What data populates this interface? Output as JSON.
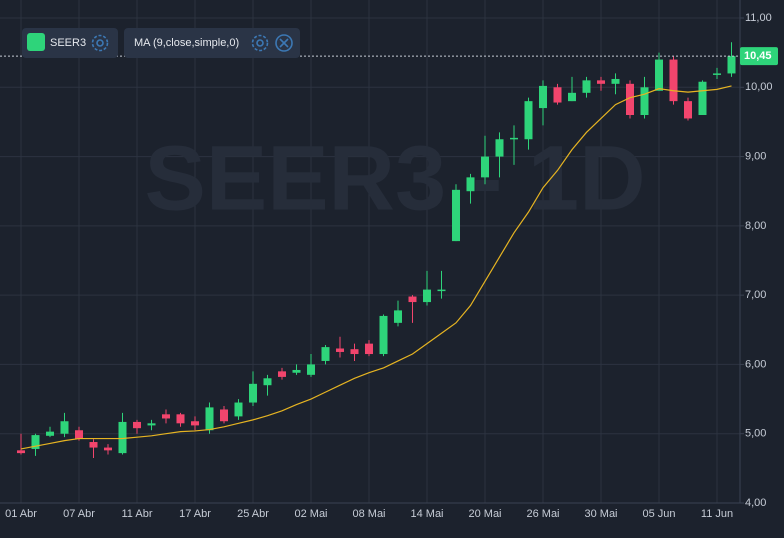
{
  "chart_data": {
    "type": "candlestick",
    "watermark": "SEER3 - 1D",
    "categories": [
      "01 Abr",
      null,
      null,
      null,
      "07 Abr",
      null,
      null,
      null,
      "11 Abr",
      null,
      null,
      null,
      "17 Abr",
      null,
      null,
      null,
      "25 Abr",
      null,
      null,
      null,
      "02 Mai",
      null,
      null,
      null,
      "08 Mai",
      null,
      null,
      null,
      "14 Mai",
      null,
      null,
      null,
      "20 Mai",
      null,
      null,
      null,
      "26 Mai",
      null,
      null,
      null,
      "30 Mai",
      null,
      null,
      null,
      "05 Jun",
      null,
      null,
      null,
      "11 Jun",
      null
    ],
    "series": [
      {
        "name": "SEER3",
        "up_color": "#2ed47a",
        "down_color": "#f2456d",
        "open": [
          4.76,
          4.78,
          4.97,
          5.0,
          5.05,
          4.88,
          4.8,
          4.72,
          5.17,
          5.12,
          5.28,
          5.28,
          5.18,
          5.05,
          5.35,
          5.25,
          5.45,
          5.7,
          5.9,
          5.88,
          5.85,
          6.05,
          6.23,
          6.22,
          6.3,
          6.15,
          6.6,
          6.98,
          6.9,
          7.06,
          7.78,
          8.5,
          8.7,
          9.0,
          9.25,
          9.25,
          9.7,
          10.0,
          9.8,
          9.92,
          10.1,
          10.05,
          10.05,
          9.6,
          9.95,
          10.4,
          9.8,
          9.6,
          10.18,
          10.2
        ],
        "high": [
          5.0,
          5.0,
          5.1,
          5.3,
          5.1,
          4.92,
          4.85,
          5.3,
          5.2,
          5.2,
          5.35,
          5.3,
          5.25,
          5.45,
          5.4,
          5.5,
          5.9,
          5.85,
          5.95,
          6.0,
          6.15,
          6.28,
          6.4,
          6.3,
          6.35,
          6.72,
          6.92,
          7.0,
          7.35,
          7.35,
          8.6,
          8.75,
          9.3,
          9.35,
          9.45,
          9.85,
          10.1,
          10.05,
          10.15,
          10.15,
          10.15,
          10.2,
          10.1,
          10.15,
          10.5,
          10.45,
          9.85,
          10.1,
          10.28,
          10.65
        ],
        "low": [
          4.7,
          4.68,
          4.95,
          4.95,
          4.9,
          4.65,
          4.7,
          4.7,
          5.0,
          5.05,
          5.15,
          5.1,
          5.05,
          5.0,
          5.15,
          5.2,
          5.4,
          5.55,
          5.78,
          5.85,
          5.82,
          6.0,
          6.1,
          6.05,
          6.12,
          6.12,
          6.55,
          6.6,
          6.85,
          6.95,
          7.78,
          8.32,
          8.6,
          8.7,
          8.88,
          9.1,
          9.45,
          9.75,
          9.8,
          9.85,
          9.95,
          9.9,
          9.55,
          9.55,
          9.95,
          9.75,
          9.52,
          9.6,
          10.12,
          10.15
        ],
        "close": [
          4.72,
          4.98,
          5.03,
          5.18,
          4.93,
          4.8,
          4.76,
          5.17,
          5.08,
          5.15,
          5.22,
          5.15,
          5.12,
          5.38,
          5.18,
          5.45,
          5.72,
          5.8,
          5.82,
          5.92,
          6.0,
          6.25,
          6.18,
          6.15,
          6.15,
          6.7,
          6.78,
          6.9,
          7.08,
          7.08,
          8.52,
          8.7,
          9.0,
          9.25,
          9.27,
          9.8,
          10.02,
          9.78,
          9.92,
          10.1,
          10.05,
          10.12,
          9.6,
          10.0,
          10.4,
          9.8,
          9.55,
          10.08,
          10.2,
          10.45
        ],
        "last_label": "10,45"
      },
      {
        "name": "MA (9,close,simple,0)",
        "color": "#e6b422",
        "values": [
          4.78,
          4.82,
          4.86,
          4.9,
          4.93,
          4.93,
          4.93,
          4.93,
          4.95,
          4.97,
          5.0,
          5.03,
          5.04,
          5.06,
          5.1,
          5.15,
          5.2,
          5.26,
          5.33,
          5.42,
          5.5,
          5.6,
          5.7,
          5.8,
          5.88,
          5.95,
          6.05,
          6.15,
          6.3,
          6.45,
          6.6,
          6.85,
          7.2,
          7.55,
          7.9,
          8.2,
          8.55,
          8.8,
          9.1,
          9.35,
          9.55,
          9.75,
          9.85,
          9.9,
          9.98,
          9.95,
          9.93,
          9.95,
          9.97,
          10.02
        ]
      }
    ],
    "ylim": [
      4,
      11
    ],
    "yticks": [
      {
        "value": 4,
        "label": "4,00"
      },
      {
        "value": 5,
        "label": "5,00"
      },
      {
        "value": 6,
        "label": "6,00"
      },
      {
        "value": 7,
        "label": "7,00"
      },
      {
        "value": 8,
        "label": "8,00"
      },
      {
        "value": 9,
        "label": "9,00"
      },
      {
        "value": 10,
        "label": "10,00"
      },
      {
        "value": 11,
        "label": "11,00"
      }
    ],
    "grid": true
  }
}
